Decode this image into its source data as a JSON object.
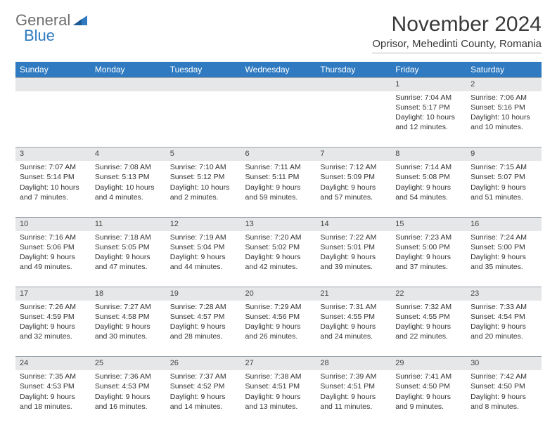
{
  "logo": {
    "text1": "General",
    "text2": "Blue",
    "color_gray": "#6f6f6f",
    "color_blue": "#2f7ac0"
  },
  "title": "November 2024",
  "location": "Oprisor, Mehedinti County, Romania",
  "colors": {
    "header_bg": "#2f7ac0",
    "header_fg": "#ffffff",
    "daynum_bg": "#e6e7e9",
    "border": "#9aa3ab",
    "text": "#333333"
  },
  "weekdays": [
    "Sunday",
    "Monday",
    "Tuesday",
    "Wednesday",
    "Thursday",
    "Friday",
    "Saturday"
  ],
  "weeks": [
    {
      "nums": [
        "",
        "",
        "",
        "",
        "",
        "1",
        "2"
      ],
      "cells": [
        null,
        null,
        null,
        null,
        null,
        {
          "sunrise": "Sunrise: 7:04 AM",
          "sunset": "Sunset: 5:17 PM",
          "day1": "Daylight: 10 hours",
          "day2": "and 12 minutes."
        },
        {
          "sunrise": "Sunrise: 7:06 AM",
          "sunset": "Sunset: 5:16 PM",
          "day1": "Daylight: 10 hours",
          "day2": "and 10 minutes."
        }
      ]
    },
    {
      "nums": [
        "3",
        "4",
        "5",
        "6",
        "7",
        "8",
        "9"
      ],
      "cells": [
        {
          "sunrise": "Sunrise: 7:07 AM",
          "sunset": "Sunset: 5:14 PM",
          "day1": "Daylight: 10 hours",
          "day2": "and 7 minutes."
        },
        {
          "sunrise": "Sunrise: 7:08 AM",
          "sunset": "Sunset: 5:13 PM",
          "day1": "Daylight: 10 hours",
          "day2": "and 4 minutes."
        },
        {
          "sunrise": "Sunrise: 7:10 AM",
          "sunset": "Sunset: 5:12 PM",
          "day1": "Daylight: 10 hours",
          "day2": "and 2 minutes."
        },
        {
          "sunrise": "Sunrise: 7:11 AM",
          "sunset": "Sunset: 5:11 PM",
          "day1": "Daylight: 9 hours",
          "day2": "and 59 minutes."
        },
        {
          "sunrise": "Sunrise: 7:12 AM",
          "sunset": "Sunset: 5:09 PM",
          "day1": "Daylight: 9 hours",
          "day2": "and 57 minutes."
        },
        {
          "sunrise": "Sunrise: 7:14 AM",
          "sunset": "Sunset: 5:08 PM",
          "day1": "Daylight: 9 hours",
          "day2": "and 54 minutes."
        },
        {
          "sunrise": "Sunrise: 7:15 AM",
          "sunset": "Sunset: 5:07 PM",
          "day1": "Daylight: 9 hours",
          "day2": "and 51 minutes."
        }
      ]
    },
    {
      "nums": [
        "10",
        "11",
        "12",
        "13",
        "14",
        "15",
        "16"
      ],
      "cells": [
        {
          "sunrise": "Sunrise: 7:16 AM",
          "sunset": "Sunset: 5:06 PM",
          "day1": "Daylight: 9 hours",
          "day2": "and 49 minutes."
        },
        {
          "sunrise": "Sunrise: 7:18 AM",
          "sunset": "Sunset: 5:05 PM",
          "day1": "Daylight: 9 hours",
          "day2": "and 47 minutes."
        },
        {
          "sunrise": "Sunrise: 7:19 AM",
          "sunset": "Sunset: 5:04 PM",
          "day1": "Daylight: 9 hours",
          "day2": "and 44 minutes."
        },
        {
          "sunrise": "Sunrise: 7:20 AM",
          "sunset": "Sunset: 5:02 PM",
          "day1": "Daylight: 9 hours",
          "day2": "and 42 minutes."
        },
        {
          "sunrise": "Sunrise: 7:22 AM",
          "sunset": "Sunset: 5:01 PM",
          "day1": "Daylight: 9 hours",
          "day2": "and 39 minutes."
        },
        {
          "sunrise": "Sunrise: 7:23 AM",
          "sunset": "Sunset: 5:00 PM",
          "day1": "Daylight: 9 hours",
          "day2": "and 37 minutes."
        },
        {
          "sunrise": "Sunrise: 7:24 AM",
          "sunset": "Sunset: 5:00 PM",
          "day1": "Daylight: 9 hours",
          "day2": "and 35 minutes."
        }
      ]
    },
    {
      "nums": [
        "17",
        "18",
        "19",
        "20",
        "21",
        "22",
        "23"
      ],
      "cells": [
        {
          "sunrise": "Sunrise: 7:26 AM",
          "sunset": "Sunset: 4:59 PM",
          "day1": "Daylight: 9 hours",
          "day2": "and 32 minutes."
        },
        {
          "sunrise": "Sunrise: 7:27 AM",
          "sunset": "Sunset: 4:58 PM",
          "day1": "Daylight: 9 hours",
          "day2": "and 30 minutes."
        },
        {
          "sunrise": "Sunrise: 7:28 AM",
          "sunset": "Sunset: 4:57 PM",
          "day1": "Daylight: 9 hours",
          "day2": "and 28 minutes."
        },
        {
          "sunrise": "Sunrise: 7:29 AM",
          "sunset": "Sunset: 4:56 PM",
          "day1": "Daylight: 9 hours",
          "day2": "and 26 minutes."
        },
        {
          "sunrise": "Sunrise: 7:31 AM",
          "sunset": "Sunset: 4:55 PM",
          "day1": "Daylight: 9 hours",
          "day2": "and 24 minutes."
        },
        {
          "sunrise": "Sunrise: 7:32 AM",
          "sunset": "Sunset: 4:55 PM",
          "day1": "Daylight: 9 hours",
          "day2": "and 22 minutes."
        },
        {
          "sunrise": "Sunrise: 7:33 AM",
          "sunset": "Sunset: 4:54 PM",
          "day1": "Daylight: 9 hours",
          "day2": "and 20 minutes."
        }
      ]
    },
    {
      "nums": [
        "24",
        "25",
        "26",
        "27",
        "28",
        "29",
        "30"
      ],
      "cells": [
        {
          "sunrise": "Sunrise: 7:35 AM",
          "sunset": "Sunset: 4:53 PM",
          "day1": "Daylight: 9 hours",
          "day2": "and 18 minutes."
        },
        {
          "sunrise": "Sunrise: 7:36 AM",
          "sunset": "Sunset: 4:53 PM",
          "day1": "Daylight: 9 hours",
          "day2": "and 16 minutes."
        },
        {
          "sunrise": "Sunrise: 7:37 AM",
          "sunset": "Sunset: 4:52 PM",
          "day1": "Daylight: 9 hours",
          "day2": "and 14 minutes."
        },
        {
          "sunrise": "Sunrise: 7:38 AM",
          "sunset": "Sunset: 4:51 PM",
          "day1": "Daylight: 9 hours",
          "day2": "and 13 minutes."
        },
        {
          "sunrise": "Sunrise: 7:39 AM",
          "sunset": "Sunset: 4:51 PM",
          "day1": "Daylight: 9 hours",
          "day2": "and 11 minutes."
        },
        {
          "sunrise": "Sunrise: 7:41 AM",
          "sunset": "Sunset: 4:50 PM",
          "day1": "Daylight: 9 hours",
          "day2": "and 9 minutes."
        },
        {
          "sunrise": "Sunrise: 7:42 AM",
          "sunset": "Sunset: 4:50 PM",
          "day1": "Daylight: 9 hours",
          "day2": "and 8 minutes."
        }
      ]
    }
  ]
}
